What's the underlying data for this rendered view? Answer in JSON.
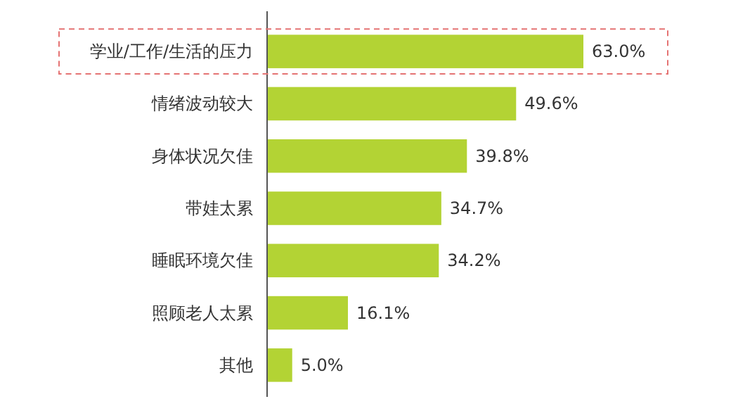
{
  "chart_data": {
    "type": "bar",
    "orientation": "horizontal",
    "categories": [
      "学业/工作/生活的压力",
      "情绪波动较大",
      "身体状况欠佳",
      "带娃太累",
      "睡眠环境欠佳",
      "照顾老人太累",
      "其他"
    ],
    "values": [
      63.0,
      49.6,
      39.8,
      34.7,
      34.2,
      16.1,
      5.0
    ],
    "value_labels": [
      "63.0%",
      "49.6%",
      "39.8%",
      "34.7%",
      "34.2%",
      "16.1%",
      "5.0%"
    ],
    "color": "#b3d334"
  }
}
